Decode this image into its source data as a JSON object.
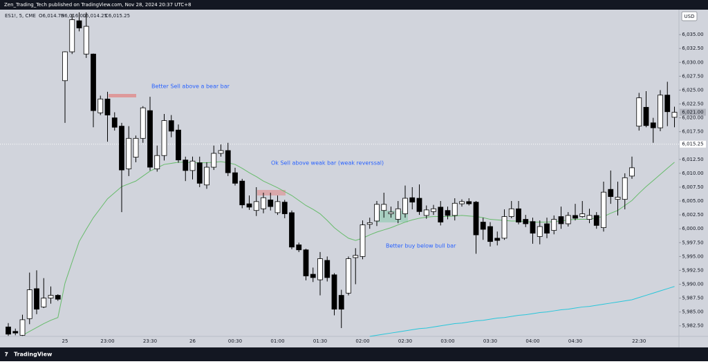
{
  "header": {
    "publisher": "Zen_Trading_Tech published on TradingView.com, Nov 28, 2024 20:37 UTC+8",
    "currency": "USD",
    "footer": "TradingView"
  },
  "chart_data": {
    "type": "candlestick",
    "symbol": "ES1!, 5, CME",
    "ohlc_text": [
      "O6,014.75",
      "H6,016.00",
      "L6,014.25",
      "C6,015.25"
    ],
    "categories": [
      null,
      null,
      null,
      null,
      null,
      null,
      null,
      null,
      "25",
      null,
      null,
      null,
      null,
      null,
      "23:00",
      null,
      null,
      null,
      null,
      null,
      "23:30",
      null,
      null,
      null,
      null,
      null,
      "26",
      null,
      null,
      null,
      null,
      null,
      "00:30",
      null,
      null,
      null,
      null,
      null,
      "01:00",
      null,
      null,
      null,
      null,
      null,
      "01:30",
      null,
      null,
      null,
      null,
      null,
      "02:00",
      null,
      null,
      null,
      null,
      null,
      "02:30",
      null,
      null,
      null,
      null,
      null,
      "03:00",
      null,
      null,
      null,
      null,
      null,
      "03:30",
      null,
      null,
      null,
      null,
      null,
      "04:00",
      null,
      null,
      null,
      null,
      null,
      "04:30",
      null,
      null,
      null,
      null,
      null,
      null,
      null,
      null,
      "22:30",
      null,
      null,
      null,
      null,
      null
    ],
    "open": [
      5982.3,
      5981.5,
      5980.8,
      5983.8,
      5989.2,
      5985.9,
      5987.5,
      5988.0,
      6026.7,
      6031.9,
      6037.5,
      6031.5,
      6031.5,
      6020.9,
      6023.4,
      6020.0,
      6018.5,
      6010.8,
      6012.9,
      6016.3,
      6021.3,
      6010.8,
      6013.2,
      6019.5,
      6017.8,
      6012.4,
      6010.5,
      6011.9,
      6007.9,
      6011.1,
      6013.6,
      6014.1,
      6010.1,
      6008.6,
      6004.5,
      6003.3,
      6003.6,
      6005.2,
      6002.9,
      6004.8,
      6002.9,
      5997.1,
      5996.2,
      5991.8,
      5990.8,
      5994.3,
      5991.7,
      5988.0,
      5988.4,
      5994.8,
      5995.0,
      6000.8,
      6001.4,
      6003.3,
      6002.7,
      6001.7,
      6002.7,
      6005.6,
      6005.5,
      6002.4,
      6003.1,
      6003.9,
      6003.3,
      6002.4,
      6004.5,
      6004.9,
      6004.8,
      6001.2,
      6000.4,
      5998.3,
      5998.3,
      6002.2,
      6003.6,
      6001.7,
      6001.3,
      5998.6,
      6000.9,
      5999.7,
      6002.2,
      6000.9,
      6002.4,
      6002.2,
      6001.7,
      6002.4,
      6000.2,
      6007.1,
      6005.3,
      6005.3,
      6009.5,
      6018.5,
      6021.9,
      6019.1,
      6018.2,
      6024.1,
      6020.1
    ],
    "high": [
      5983.0,
      5982.0,
      5984.5,
      5992.1,
      5992.5,
      5991.1,
      5989.6,
      5988.2,
      6032.0,
      6038.7,
      6039.0,
      6039.0,
      6031.6,
      6024.0,
      6024.7,
      6021.0,
      6019.1,
      6018.5,
      6016.8,
      6022.1,
      6023.8,
      6015.0,
      6020.7,
      6020.5,
      6018.8,
      6013.0,
      6013.0,
      6013.0,
      6012.0,
      6015.0,
      6015.2,
      6015.5,
      6011.0,
      6009.0,
      6006.0,
      6007.5,
      6006.5,
      6006.5,
      6006.0,
      6005.2,
      6003.3,
      5997.5,
      5996.4,
      5993.0,
      5995.8,
      5995.0,
      5992.0,
      5989.0,
      5995.0,
      5996.5,
      6001.5,
      6002.0,
      6005.0,
      6006.5,
      6004.0,
      6005.0,
      6007.8,
      6007.5,
      6008.0,
      6004.2,
      6004.3,
      6005.0,
      6004.0,
      6005.5,
      6005.3,
      6005.5,
      6005.0,
      6002.0,
      6001.2,
      5999.5,
      6003.5,
      6005.0,
      6005.0,
      6002.5,
      6002.0,
      6001.5,
      6002.0,
      6002.4,
      6004.0,
      6003.0,
      6004.5,
      6005.0,
      6003.6,
      6003.0,
      6008.5,
      6010.5,
      6008.5,
      6010.0,
      6013.0,
      6024.5,
      6024.8,
      6020.0,
      6025.0,
      6026.5,
      6022.0
    ],
    "low": [
      5980.7,
      5980.8,
      5980.7,
      5982.8,
      5984.6,
      5985.7,
      5986.5,
      5987.0,
      6019.1,
      6031.5,
      6035.6,
      6030.8,
      6018.3,
      6020.5,
      6015.7,
      6017.7,
      6003.0,
      6009.5,
      6012.0,
      6015.5,
      6010.5,
      6010.3,
      6012.3,
      6016.5,
      6011.9,
      6008.6,
      6008.9,
      6007.5,
      6007.2,
      6010.6,
      6013.0,
      6009.5,
      6007.8,
      6003.7,
      6003.4,
      6002.3,
      6002.8,
      6003.3,
      6002.5,
      6001.9,
      5996.3,
      5995.8,
      5990.7,
      5990.4,
      5988.0,
      5990.5,
      5984.4,
      5982.1,
      5988.0,
      5990.0,
      5994.5,
      6000.0,
      6000.5,
      6002.0,
      6002.0,
      6001.0,
      6002.0,
      6003.5,
      6002.5,
      6001.8,
      6002.5,
      6000.6,
      6001.7,
      6001.5,
      6004.0,
      6004.2,
      5995.5,
      5998.0,
      5996.8,
      5997.0,
      5998.0,
      6001.9,
      6000.8,
      6000.3,
      5997.3,
      5997.2,
      5998.3,
      5999.0,
      6000.0,
      6000.4,
      6001.5,
      6002.0,
      6001.0,
      6000.0,
      5999.5,
      6004.5,
      6002.4,
      6003.5,
      6009.0,
      6017.7,
      6018.3,
      6015.5,
      6017.6,
      6018.5,
      6018.3
    ],
    "close": [
      5981.0,
      5981.2,
      5983.6,
      5989.0,
      5985.5,
      5987.5,
      5988.0,
      5987.3,
      6031.9,
      6037.7,
      6036.2,
      6036.5,
      6021.3,
      6023.4,
      6020.5,
      6018.3,
      6010.6,
      6016.3,
      6016.3,
      6021.8,
      6011.1,
      6013.2,
      6019.5,
      6017.6,
      6012.4,
      6010.5,
      6012.2,
      6008.2,
      6011.1,
      6013.6,
      6014.1,
      6010.1,
      6008.2,
      6004.3,
      6003.9,
      6004.9,
      6005.6,
      6004.0,
      6004.9,
      6002.7,
      5996.7,
      5996.2,
      5991.5,
      5991.2,
      5994.6,
      5991.2,
      5985.5,
      5985.5,
      5994.6,
      5995.2,
      6000.7,
      6001.1,
      6004.4,
      6004.4,
      6003.0,
      6003.6,
      6005.5,
      6004.8,
      6003.1,
      6003.4,
      6003.6,
      6001.2,
      6002.4,
      6004.6,
      6004.9,
      6004.5,
      5998.9,
      5999.9,
      5997.7,
      5997.9,
      6002.2,
      6003.6,
      6001.2,
      6000.9,
      5999.2,
      6000.4,
      5999.2,
      6001.7,
      6000.9,
      6002.4,
      6001.9,
      6002.7,
      6002.4,
      6000.6,
      6006.6,
      6005.8,
      6005.7,
      6009.2,
      6011.0,
      6023.6,
      6018.6,
      6018.2,
      6024.1,
      6021.1,
      6021.0
    ],
    "up_color": "#ffffff",
    "down_color": "#000000",
    "lines": [
      {
        "color": "#66bb6a",
        "values": [
          null,
          null,
          5980.8,
          5981.5,
          5982.2,
          5982.9,
          5983.5,
          5984.0,
          5990.2,
          5994.0,
          5997.7,
          5999.9,
          6002.0,
          6003.7,
          6005.4,
          6006.5,
          6007.6,
          6008.1,
          6008.6,
          6009.5,
          6010.4,
          6011.0,
          6011.6,
          6011.8,
          6012.0,
          6012.0,
          6011.9,
          6011.9,
          6011.9,
          6012.0,
          6012.1,
          6011.9,
          6011.6,
          6010.9,
          6010.1,
          6009.4,
          6008.6,
          6008.0,
          6007.4,
          6006.7,
          6006.0,
          6005.1,
          6004.2,
          6003.5,
          6002.7,
          6001.5,
          6000.2,
          5999.2,
          5998.3,
          5997.9,
          5998.3,
          5998.9,
          5999.4,
          5999.8,
          6000.2,
          6000.7,
          6001.2,
          6001.6,
          6001.9,
          6002.1,
          6002.2,
          6002.2,
          6002.2,
          6002.3,
          6002.4,
          6002.3,
          6002.2,
          6002.0,
          6001.7,
          6001.6,
          6001.5,
          6001.4,
          6001.4,
          6001.3,
          6001.2,
          6001.2,
          6001.2,
          6001.3,
          6001.4,
          6001.6,
          6001.7,
          6001.7,
          6001.7,
          6002.0,
          6002.2,
          6002.8,
          6003.3,
          6004.2,
          6005.1,
          6006.4,
          6007.6,
          6008.7,
          6009.8,
          6010.9,
          6012.0
        ]
      },
      {
        "color": "#26c6da",
        "values": [
          null,
          null,
          null,
          null,
          null,
          null,
          null,
          null,
          null,
          null,
          null,
          null,
          null,
          null,
          null,
          null,
          null,
          null,
          null,
          null,
          null,
          null,
          null,
          null,
          null,
          null,
          null,
          null,
          null,
          null,
          null,
          null,
          null,
          null,
          null,
          null,
          null,
          null,
          null,
          null,
          null,
          null,
          null,
          null,
          null,
          null,
          null,
          null,
          null,
          null,
          null,
          5980.6,
          5980.8,
          5981.0,
          5981.2,
          5981.4,
          5981.6,
          5981.8,
          5982.0,
          5982.1,
          5982.3,
          5982.5,
          5982.7,
          5982.9,
          5983.0,
          5983.2,
          5983.4,
          5983.5,
          5983.7,
          5983.9,
          5984.0,
          5984.2,
          5984.4,
          5984.5,
          5984.7,
          5984.9,
          5985.0,
          5985.2,
          5985.4,
          5985.5,
          5985.7,
          5985.9,
          5986.0,
          5986.2,
          5986.4,
          5986.6,
          5986.8,
          5987.0,
          5987.2,
          5987.6,
          5988.0,
          5988.4,
          5988.8,
          5989.2,
          5989.6
        ]
      }
    ],
    "ylim": [
      5980.6,
      6039.5
    ],
    "yticks": [
      {
        "value": 5982.5,
        "label": "5,982.50"
      },
      {
        "value": 5985,
        "label": "5,985.00"
      },
      {
        "value": 5987.5,
        "label": "5,987.50"
      },
      {
        "value": 5990,
        "label": "5,990.00"
      },
      {
        "value": 5992.5,
        "label": "5,992.50"
      },
      {
        "value": 5995,
        "label": "5,995.00"
      },
      {
        "value": 5997.5,
        "label": "5,997.50"
      },
      {
        "value": 6000,
        "label": "6,000.00"
      },
      {
        "value": 6002.5,
        "label": "6,002.50"
      },
      {
        "value": 6005,
        "label": "6,005.00"
      },
      {
        "value": 6007.5,
        "label": "6,007.50"
      },
      {
        "value": 6010,
        "label": "6,010.00"
      },
      {
        "value": 6012.5,
        "label": "6,012.50"
      },
      {
        "value": 6017.5,
        "label": "6,017.50"
      },
      {
        "value": 6020,
        "label": "6,020.00"
      },
      {
        "value": 6022.5,
        "label": "6,022.50"
      },
      {
        "value": 6025,
        "label": "6,025.00"
      },
      {
        "value": 6027.5,
        "label": "6,027.50"
      },
      {
        "value": 6030,
        "label": "6,030.00"
      },
      {
        "value": 6032.5,
        "label": "6,032.50"
      },
      {
        "value": 6035,
        "label": "6,035.00"
      }
    ],
    "price_lines": [
      {
        "value": 6015.25,
        "label": "6,015.25"
      },
      {
        "value": 6021.0,
        "label": "6,021.00"
      }
    ],
    "annotations": [
      "Better Sell above a bear bar",
      "Ok Sell above weak bar (weak reverssal)",
      "Better buy below bull bar"
    ],
    "grid": false
  }
}
